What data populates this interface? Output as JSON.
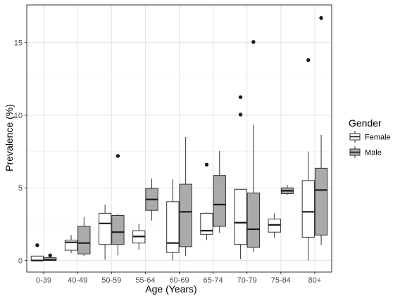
{
  "chart_data": {
    "type": "boxplot",
    "xlabel": "Age (Years)",
    "ylabel": "Prevalence (%)",
    "ylim": [
      -0.8,
      17.6
    ],
    "y_ticks": [
      0,
      5,
      10,
      15
    ],
    "y_tick_labels": [
      "0",
      "5",
      "10",
      "15"
    ],
    "grid": true,
    "legend_position": "right",
    "legend": {
      "title": "Gender",
      "entries": [
        {
          "label": "Female",
          "color": "#ffffff"
        },
        {
          "label": "Male",
          "color": "#aaaaaa"
        }
      ]
    },
    "categories": [
      "0-39",
      "40-49",
      "50-59",
      "55-64",
      "60-69",
      "65-74",
      "70-79",
      "75-84",
      "80+"
    ],
    "series": [
      {
        "name": "Female",
        "fill": "#ffffff",
        "boxes": [
          {
            "category": "0-39",
            "whisker_low": 0.0,
            "q1": 0.0,
            "median": 0.0,
            "q3": 0.3,
            "whisker_high": 0.3,
            "outliers": [
              1.05
            ]
          },
          {
            "category": "40-49",
            "whisker_low": 0.5,
            "q1": 0.7,
            "median": 1.25,
            "q3": 1.4,
            "whisker_high": 1.75,
            "outliers": []
          },
          {
            "category": "50-59",
            "whisker_low": 0.05,
            "q1": 1.1,
            "median": 2.55,
            "q3": 3.25,
            "whisker_high": 3.85,
            "outliers": []
          },
          {
            "category": "55-64",
            "whisker_low": 0.75,
            "q1": 1.2,
            "median": 1.65,
            "q3": 2.05,
            "whisker_high": 2.5,
            "outliers": []
          },
          {
            "category": "60-69",
            "whisker_low": 0.0,
            "q1": 0.55,
            "median": 1.2,
            "q3": 4.05,
            "whisker_high": 5.6,
            "outliers": []
          },
          {
            "category": "65-74",
            "whisker_low": 1.4,
            "q1": 1.8,
            "median": 2.05,
            "q3": 3.25,
            "whisker_high": 3.3,
            "outliers": [
              6.6
            ]
          },
          {
            "category": "70-79",
            "whisker_low": 0.1,
            "q1": 1.1,
            "median": 2.6,
            "q3": 4.9,
            "whisker_high": 4.9,
            "outliers": [
              10.05,
              11.25
            ]
          },
          {
            "category": "75-84",
            "whisker_low": 1.55,
            "q1": 1.95,
            "median": 2.45,
            "q3": 2.85,
            "whisker_high": 3.25,
            "outliers": []
          },
          {
            "category": "80+",
            "whisker_low": 0.0,
            "q1": 1.6,
            "median": 3.35,
            "q3": 5.5,
            "whisker_high": 7.5,
            "outliers": [
              13.8
            ]
          }
        ]
      },
      {
        "name": "Male",
        "fill": "#aaaaaa",
        "boxes": [
          {
            "category": "0-39",
            "whisker_low": 0.0,
            "q1": 0.0,
            "median": 0.05,
            "q3": 0.2,
            "whisker_high": 0.2,
            "outliers": [
              0.35
            ]
          },
          {
            "category": "40-49",
            "whisker_low": 0.3,
            "q1": 0.45,
            "median": 1.2,
            "q3": 2.35,
            "whisker_high": 3.0,
            "outliers": []
          },
          {
            "category": "50-59",
            "whisker_low": 0.35,
            "q1": 1.1,
            "median": 1.95,
            "q3": 3.1,
            "whisker_high": 3.2,
            "outliers": [
              7.2
            ]
          },
          {
            "category": "55-64",
            "whisker_low": 2.75,
            "q1": 3.45,
            "median": 4.2,
            "q3": 4.95,
            "whisker_high": 5.65,
            "outliers": []
          },
          {
            "category": "60-69",
            "whisker_low": 0.3,
            "q1": 0.95,
            "median": 3.35,
            "q3": 5.25,
            "whisker_high": 8.5,
            "outliers": []
          },
          {
            "category": "65-74",
            "whisker_low": 1.9,
            "q1": 2.35,
            "median": 3.85,
            "q3": 5.85,
            "whisker_high": 7.55,
            "outliers": []
          },
          {
            "category": "70-79",
            "whisker_low": 0.55,
            "q1": 0.9,
            "median": 2.15,
            "q3": 4.65,
            "whisker_high": 9.35,
            "outliers": [
              15.05
            ]
          },
          {
            "category": "75-84",
            "whisker_low": 4.5,
            "q1": 4.6,
            "median": 4.8,
            "q3": 5.0,
            "whisker_high": 5.2,
            "outliers": []
          },
          {
            "category": "80+",
            "whisker_low": 1.05,
            "q1": 1.75,
            "median": 4.85,
            "q3": 6.35,
            "whisker_high": 8.65,
            "outliers": [
              16.7
            ]
          }
        ]
      }
    ]
  }
}
